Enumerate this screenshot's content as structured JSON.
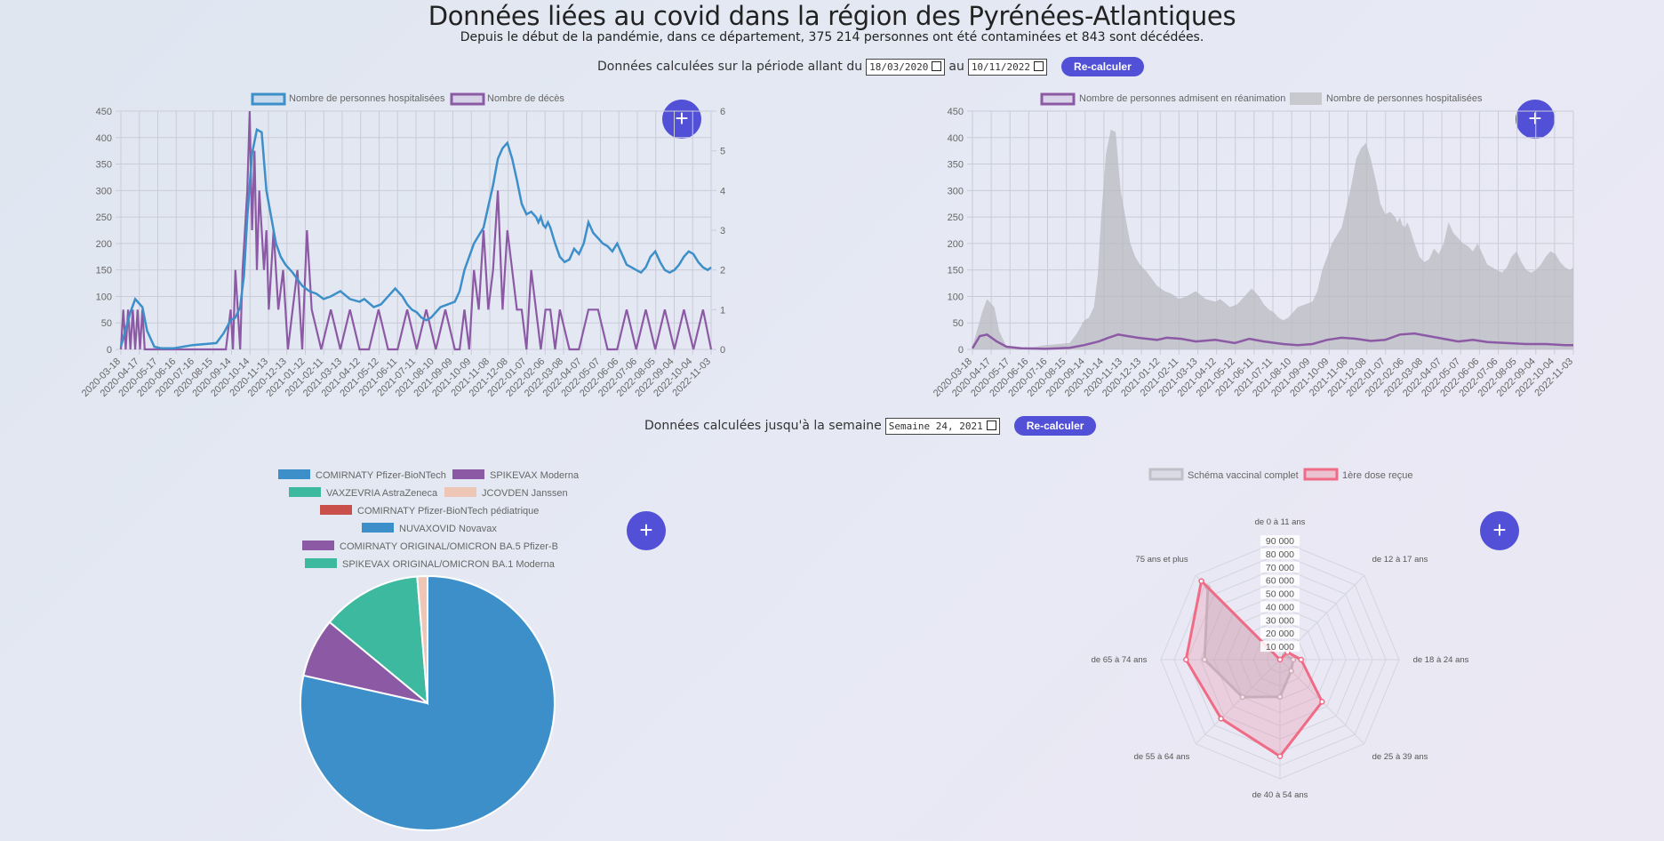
{
  "header": {
    "title": "Données liées au covid dans la région des Pyrénées-Atlantiques",
    "subtitle": "Depuis le début de la pandémie, dans ce département, 375 214 personnes ont été contaminées et 843 sont décédées."
  },
  "period_controls": {
    "label_start": "Données calculées sur la période allant du",
    "start_date": "18/03/2020",
    "label_mid": "au",
    "end_date": "10/11/2022",
    "button": "Re-calculer"
  },
  "week_controls": {
    "label": "Données calculées jusqu'à la semaine",
    "week_value": "Semaine 24, 2021",
    "button": "Re-calculer"
  },
  "expand_button_label": "+",
  "colors": {
    "accent": "#5150d6",
    "blue": "#3d8fc9",
    "purple": "#8c5aa5",
    "grey": "#c2c3c9",
    "pink": "#f06b86",
    "teal": "#3cb99e",
    "peach": "#edc6b5",
    "red": "#c9504a"
  },
  "chart_data": [
    {
      "type": "line",
      "legend": [
        "Nombre de personnes hospitalisées",
        "Nombre de décès"
      ],
      "x_ticks": [
        "2020-03-18",
        "2020-04-17",
        "2020-05-17",
        "2020-06-16",
        "2020-07-16",
        "2020-08-15",
        "2020-09-14",
        "2020-10-14",
        "2020-11-13",
        "2020-12-13",
        "2021-01-12",
        "2021-02-11",
        "2021-03-13",
        "2021-04-12",
        "2021-05-12",
        "2021-06-11",
        "2021-07-11",
        "2021-08-10",
        "2021-09-09",
        "2021-10-09",
        "2021-11-08",
        "2021-12-08",
        "2022-01-07",
        "2022-02-06",
        "2022-03-08",
        "2022-04-07",
        "2022-05-07",
        "2022-06-06",
        "2022-07-06",
        "2022-08-05",
        "2022-09-04",
        "2022-10-04",
        "2022-11-03"
      ],
      "y_left_ticks": [
        "450",
        "400",
        "350",
        "300",
        "250",
        "200",
        "150",
        "100",
        "50",
        "0"
      ],
      "y_right_ticks": [
        "6",
        "5",
        "4",
        "3",
        "2",
        "1",
        "0"
      ],
      "ylim_left": [
        0,
        450
      ],
      "ylim_right": [
        0,
        6
      ],
      "series": [
        {
          "name": "Nombre de personnes hospitalisées",
          "axis": "left",
          "x": [
            0,
            20,
            30,
            45,
            55,
            70,
            85,
            110,
            150,
            200,
            215,
            230,
            240,
            250,
            258,
            265,
            275,
            285,
            295,
            305,
            315,
            325,
            335,
            345,
            360,
            380,
            395,
            410,
            425,
            440,
            460,
            480,
            500,
            510,
            530,
            545,
            560,
            575,
            590,
            600,
            610,
            620,
            630,
            640,
            650,
            660,
            670,
            685,
            700,
            710,
            720,
            740,
            760,
            770,
            780,
            790,
            800,
            810,
            820,
            830,
            840,
            850,
            860,
            870,
            875,
            880,
            885,
            890,
            895,
            900,
            910,
            920,
            930,
            940,
            950,
            960,
            970,
            980,
            990,
            1000,
            1010,
            1020,
            1030,
            1040,
            1050,
            1060,
            1070,
            1080,
            1090,
            1100,
            1110,
            1120,
            1130,
            1140,
            1150,
            1160,
            1170,
            1180,
            1190,
            1200,
            1210,
            1220,
            1230,
            1237
          ],
          "y": [
            5,
            70,
            95,
            80,
            35,
            5,
            2,
            2,
            8,
            12,
            30,
            55,
            60,
            80,
            140,
            250,
            370,
            415,
            410,
            300,
            250,
            200,
            175,
            160,
            145,
            120,
            110,
            105,
            95,
            100,
            110,
            95,
            90,
            95,
            80,
            85,
            100,
            115,
            100,
            85,
            75,
            70,
            60,
            55,
            60,
            70,
            80,
            85,
            90,
            110,
            150,
            200,
            230,
            270,
            310,
            360,
            380,
            390,
            360,
            320,
            275,
            255,
            260,
            250,
            240,
            250,
            235,
            230,
            240,
            230,
            200,
            175,
            165,
            170,
            190,
            180,
            200,
            240,
            220,
            210,
            200,
            195,
            185,
            200,
            180,
            160,
            155,
            150,
            145,
            155,
            175,
            185,
            165,
            150,
            145,
            150,
            160,
            175,
            185,
            180,
            165,
            155,
            150,
            155
          ]
        },
        {
          "name": "Nombre de décès",
          "axis": "right",
          "x": [
            0,
            5,
            10,
            15,
            20,
            25,
            30,
            35,
            40,
            45,
            50,
            55,
            60,
            70,
            80,
            90,
            100,
            120,
            140,
            160,
            180,
            200,
            220,
            230,
            235,
            240,
            245,
            250,
            255,
            260,
            265,
            270,
            275,
            280,
            285,
            290,
            295,
            300,
            305,
            310,
            315,
            320,
            330,
            340,
            350,
            360,
            370,
            380,
            390,
            400,
            420,
            440,
            460,
            480,
            500,
            520,
            540,
            560,
            580,
            600,
            620,
            640,
            660,
            680,
            700,
            710,
            720,
            730,
            740,
            750,
            760,
            770,
            780,
            790,
            800,
            810,
            820,
            830,
            840,
            850,
            860,
            870,
            880,
            890,
            900,
            910,
            920,
            940,
            960,
            980,
            1000,
            1020,
            1040,
            1060,
            1080,
            1100,
            1120,
            1140,
            1160,
            1180,
            1200,
            1220,
            1237
          ],
          "y": [
            0,
            1,
            0,
            1,
            0,
            1,
            0,
            1,
            0,
            1,
            0,
            0,
            0,
            0,
            0,
            0,
            0,
            0,
            0,
            0,
            0,
            0,
            0,
            1,
            0,
            2,
            1,
            0,
            2,
            3,
            4,
            6,
            3,
            5,
            2,
            4,
            3,
            2,
            3,
            1,
            2,
            3,
            1,
            2,
            0,
            1,
            2,
            0,
            3,
            1,
            0,
            1,
            0,
            1,
            0,
            0,
            1,
            0,
            0,
            1,
            0,
            1,
            0,
            1,
            0,
            0,
            1,
            0,
            2,
            1,
            3,
            1,
            2,
            4,
            1,
            3,
            2,
            1,
            1,
            0,
            2,
            1,
            0,
            1,
            1,
            0,
            1,
            0,
            0,
            1,
            1,
            0,
            0,
            1,
            0,
            1,
            0,
            1,
            0,
            1,
            0,
            1,
            0
          ]
        }
      ]
    },
    {
      "type": "area",
      "legend": [
        "Nombre de personnes admisent en réanimation",
        "Nombre de personnes hospitalisées"
      ],
      "x_ticks": [
        "2020-03-18",
        "2020-04-17",
        "2020-05-17",
        "2020-06-16",
        "2020-07-16",
        "2020-08-15",
        "2020-09-14",
        "2020-10-14",
        "2020-11-13",
        "2020-12-13",
        "2021-01-12",
        "2021-02-11",
        "2021-03-13",
        "2021-04-12",
        "2021-05-12",
        "2021-06-11",
        "2021-07-11",
        "2021-08-10",
        "2021-09-09",
        "2021-10-09",
        "2021-11-08",
        "2021-12-08",
        "2022-01-07",
        "2022-02-06",
        "2022-03-08",
        "2022-04-07",
        "2022-05-07",
        "2022-06-06",
        "2022-07-06",
        "2022-08-05",
        "2022-09-04",
        "2022-10-04",
        "2022-11-03"
      ],
      "y_ticks": [
        "450",
        "400",
        "350",
        "300",
        "250",
        "200",
        "150",
        "100",
        "50",
        "0"
      ],
      "ylim": [
        0,
        450
      ],
      "series": [
        {
          "name": "Nombre de personnes hospitalisées",
          "fill": true,
          "x": [
            0,
            20,
            30,
            45,
            55,
            70,
            85,
            110,
            150,
            200,
            215,
            230,
            240,
            250,
            258,
            265,
            275,
            285,
            295,
            305,
            315,
            325,
            335,
            345,
            360,
            380,
            395,
            410,
            425,
            440,
            460,
            480,
            500,
            510,
            530,
            545,
            560,
            575,
            590,
            600,
            610,
            620,
            630,
            640,
            650,
            660,
            670,
            685,
            700,
            710,
            720,
            740,
            760,
            770,
            780,
            790,
            800,
            810,
            820,
            830,
            840,
            850,
            860,
            870,
            875,
            880,
            885,
            890,
            895,
            900,
            910,
            920,
            930,
            940,
            950,
            960,
            970,
            980,
            990,
            1000,
            1010,
            1020,
            1030,
            1040,
            1050,
            1060,
            1070,
            1080,
            1090,
            1100,
            1110,
            1120,
            1130,
            1140,
            1150,
            1160,
            1170,
            1180,
            1190,
            1200,
            1210,
            1220,
            1230,
            1237
          ],
          "y": [
            5,
            70,
            95,
            80,
            35,
            5,
            2,
            2,
            8,
            12,
            30,
            55,
            60,
            80,
            140,
            250,
            370,
            415,
            410,
            300,
            250,
            200,
            175,
            160,
            145,
            120,
            110,
            105,
            95,
            100,
            110,
            95,
            90,
            95,
            80,
            85,
            100,
            115,
            100,
            85,
            75,
            70,
            60,
            55,
            60,
            70,
            80,
            85,
            90,
            110,
            150,
            200,
            230,
            270,
            310,
            360,
            380,
            390,
            360,
            320,
            275,
            255,
            260,
            250,
            240,
            250,
            235,
            230,
            240,
            230,
            200,
            175,
            165,
            170,
            190,
            180,
            200,
            240,
            220,
            210,
            200,
            195,
            185,
            200,
            180,
            160,
            155,
            150,
            145,
            155,
            175,
            185,
            165,
            150,
            145,
            150,
            160,
            175,
            185,
            180,
            165,
            155,
            150,
            155
          ]
        },
        {
          "name": "Nombre de personnes admisent en réanimation",
          "fill": false,
          "x": [
            0,
            15,
            30,
            50,
            70,
            100,
            150,
            200,
            230,
            260,
            280,
            300,
            320,
            340,
            360,
            380,
            400,
            430,
            460,
            500,
            540,
            570,
            600,
            640,
            670,
            700,
            730,
            760,
            790,
            820,
            850,
            880,
            910,
            940,
            970,
            1000,
            1030,
            1060,
            1100,
            1140,
            1180,
            1220,
            1237
          ],
          "y": [
            2,
            25,
            28,
            15,
            5,
            2,
            1,
            3,
            8,
            15,
            22,
            28,
            25,
            22,
            20,
            18,
            22,
            20,
            15,
            18,
            12,
            20,
            15,
            10,
            8,
            10,
            18,
            22,
            20,
            16,
            18,
            28,
            30,
            25,
            20,
            15,
            18,
            14,
            12,
            10,
            10,
            8,
            8
          ]
        }
      ]
    },
    {
      "type": "pie",
      "legend": [
        "COMIRNATY Pfizer-BioNTech",
        "SPIKEVAX Moderna",
        "VAXZEVRIA AstraZeneca",
        "JCOVDEN Janssen",
        "COMIRNATY Pfizer-BioNTech pédiatrique",
        "NUVAXOVID Novavax",
        "COMIRNATY ORIGINAL/OMICRON BA.5 Pfizer-B",
        "SPIKEVAX ORIGINAL/OMICRON BA.1 Moderna"
      ],
      "values": [
        78.5,
        7.5,
        12.7,
        1.3,
        0,
        0,
        0,
        0
      ]
    },
    {
      "type": "radar",
      "legend": [
        "Schéma vaccinal complet",
        "1ère dose reçue"
      ],
      "axes": [
        "de 0 à 11 ans",
        "de 12 à 17 ans",
        "de 18 à 24 ans",
        "de 25 à 39 ans",
        "de 40 à 54 ans",
        "de 55 à 64 ans",
        "de 65 à 74 ans",
        "75 ans et plus"
      ],
      "r_ticks": [
        "10 000",
        "20 000",
        "30 000",
        "40 000",
        "50 000",
        "60 000",
        "70 000",
        "80 000",
        "90 000"
      ],
      "rlim": [
        0,
        90000
      ],
      "series": [
        {
          "name": "Schéma vaccinal complet",
          "values": [
            0,
            5000,
            10000,
            12000,
            28000,
            40000,
            57000,
            77000
          ]
        },
        {
          "name": "1ère dose reçue",
          "values": [
            0,
            8000,
            16000,
            45000,
            73000,
            63000,
            71000,
            84000
          ]
        }
      ]
    }
  ]
}
